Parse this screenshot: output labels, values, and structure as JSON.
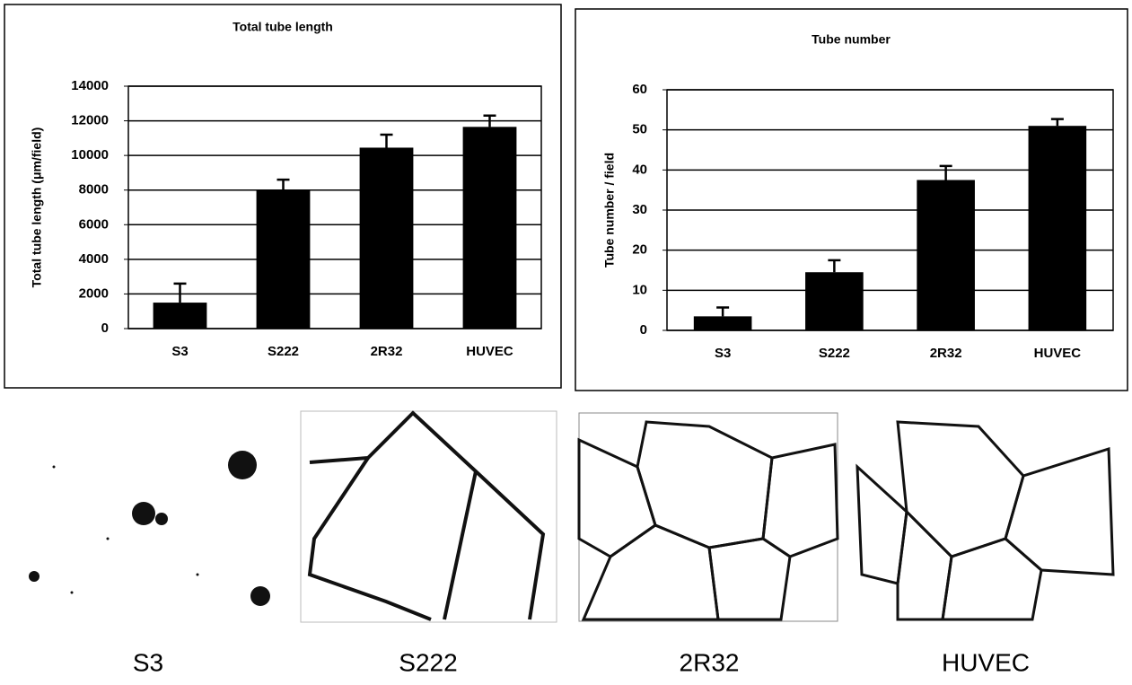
{
  "chart_data": [
    {
      "type": "bar",
      "title": "Total tube length",
      "y_label": "Total tube length (μm/field)",
      "categories": [
        "S3",
        "S222",
        "2R32",
        "HUVEC"
      ],
      "values": [
        1500,
        8000,
        10450,
        11650
      ],
      "errors": [
        1100,
        600,
        750,
        650
      ],
      "color": "#000000",
      "ylim": [
        0,
        14000
      ],
      "yticks": [
        0,
        2000,
        4000,
        6000,
        8000,
        10000,
        12000,
        14000
      ],
      "grid": true
    },
    {
      "type": "bar",
      "title": "Tube number",
      "y_label": "Tube number / field",
      "categories": [
        "S3",
        "S222",
        "2R32",
        "HUVEC"
      ],
      "values": [
        3.5,
        14.5,
        37.5,
        51
      ],
      "errors": [
        2.2,
        3,
        3.5,
        1.7
      ],
      "color": "#000000",
      "ylim": [
        0,
        60
      ],
      "yticks": [
        0,
        10,
        20,
        30,
        40,
        50,
        60
      ],
      "grid": true
    }
  ],
  "panels": [
    "S3",
    "S222",
    "2R32",
    "HUVEC"
  ]
}
